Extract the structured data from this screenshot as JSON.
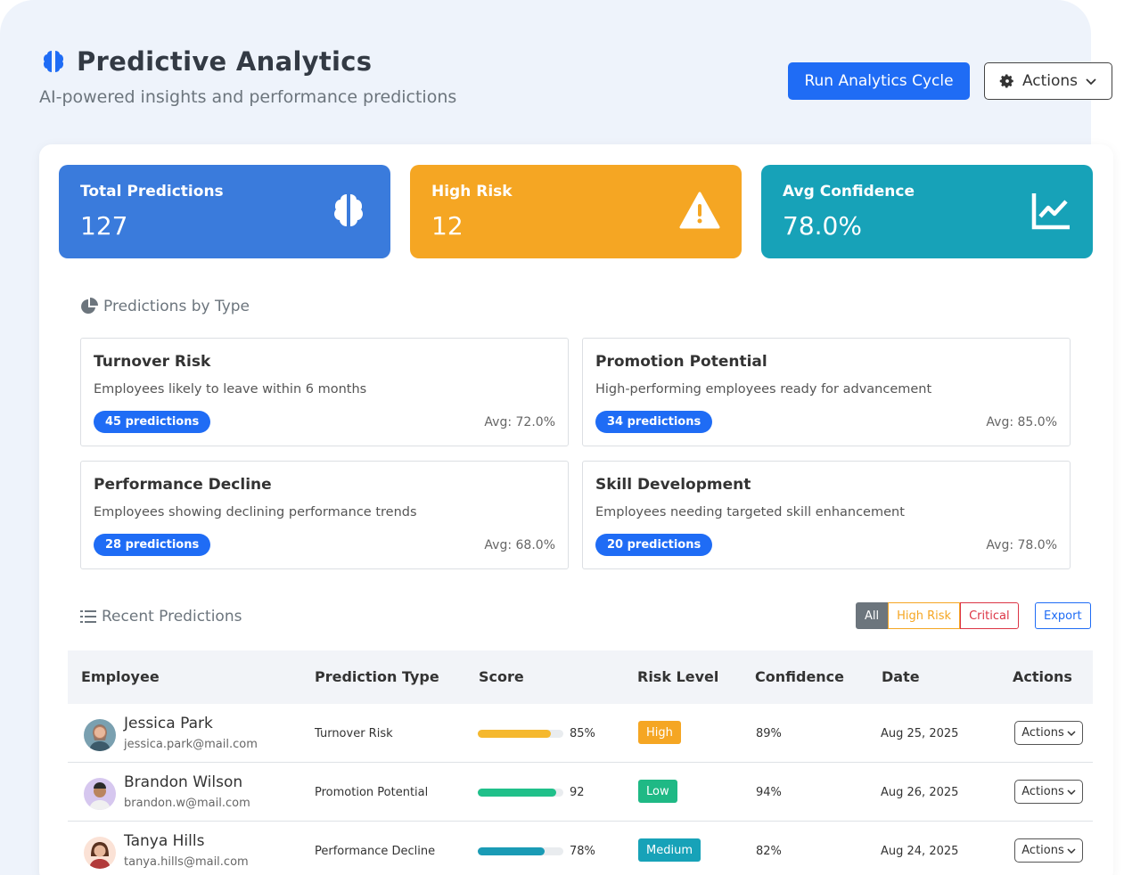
{
  "header": {
    "title": "Predictive Analytics",
    "subtitle": "AI-powered insights and performance predictions",
    "run_button": "Run Analytics Cycle",
    "actions_button": "Actions"
  },
  "stats": [
    {
      "label": "Total Predictions",
      "value": "127",
      "icon": "brain-icon",
      "color": "#3a7bdc"
    },
    {
      "label": "High Risk",
      "value": "12",
      "icon": "warning-icon",
      "color": "#f5a623"
    },
    {
      "label": "Avg Confidence",
      "value": "78.0%",
      "icon": "chart-line-icon",
      "color": "#17a2b8"
    }
  ],
  "types_section": {
    "title": "Predictions by Type",
    "items": [
      {
        "title": "Turnover Risk",
        "desc": "Employees likely to leave within 6 months",
        "badge": "45 predictions",
        "avg": "Avg: 72.0%"
      },
      {
        "title": "Promotion Potential",
        "desc": "High-performing employees ready for advancement",
        "badge": "34 predictions",
        "avg": "Avg: 85.0%"
      },
      {
        "title": "Performance Decline",
        "desc": "Employees showing declining performance trends",
        "badge": "28 predictions",
        "avg": "Avg: 68.0%"
      },
      {
        "title": "Skill Development",
        "desc": "Employees needing targeted skill enhancement",
        "badge": "20 predictions",
        "avg": "Avg: 78.0%"
      }
    ]
  },
  "recent_section": {
    "title": "Recent Predictions",
    "filters": {
      "all": "All",
      "high": "High Risk",
      "critical": "Critical"
    },
    "export": "Export",
    "columns": [
      "Employee",
      "Prediction Type",
      "Score",
      "Risk Level",
      "Confidence",
      "Date",
      "Actions"
    ],
    "rows": [
      {
        "name": "Jessica Park",
        "email": "jessica.park@mail.com",
        "type": "Turnover Risk",
        "score": 85,
        "score_text": "85%",
        "score_color": "#f5b82e",
        "risk": "High",
        "risk_color": "#f5a623",
        "confidence": "89%",
        "date": "Aug 25, 2025",
        "actions": "Actions"
      },
      {
        "name": "Brandon Wilson",
        "email": "brandon.w@mail.com",
        "type": "Promotion Potential",
        "score": 92,
        "score_text": "92",
        "score_color": "#20c08a",
        "risk": "Low",
        "risk_color": "#1fb985",
        "confidence": "94%",
        "date": "Aug 26, 2025",
        "actions": "Actions"
      },
      {
        "name": "Tanya Hills",
        "email": "tanya.hills@mail.com",
        "type": "Performance Decline",
        "score": 78,
        "score_text": "78%",
        "score_color": "#1a9bb5",
        "risk": "Medium",
        "risk_color": "#17a2b8",
        "confidence": "82%",
        "date": "Aug 24, 2025",
        "actions": "Actions"
      }
    ]
  }
}
